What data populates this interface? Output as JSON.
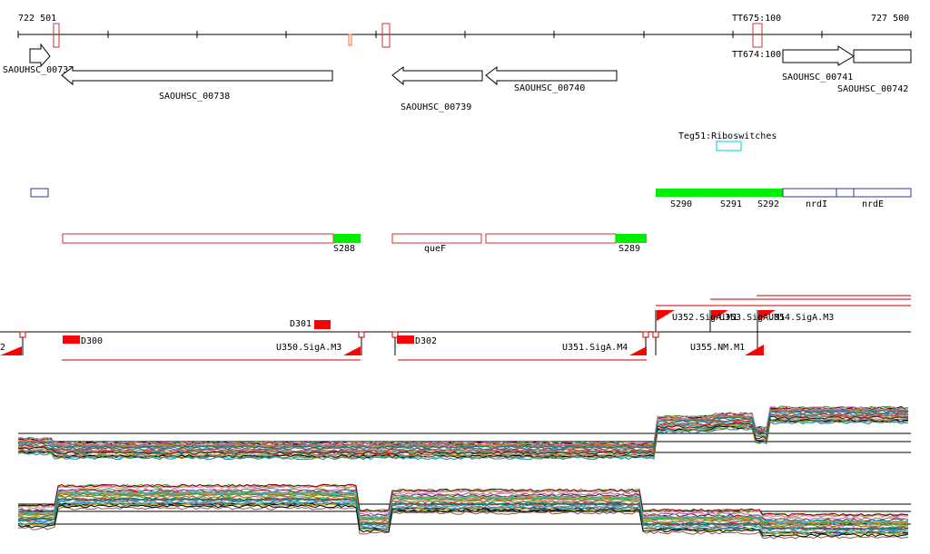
{
  "ruler": {
    "start": "722 501",
    "end": "727 500",
    "terminators": [
      "TT675:100",
      "TT674:100"
    ]
  },
  "genes": [
    {
      "id": "SAOUHSC_00737",
      "label": "SAOUHSC_00737",
      "strand": "+"
    },
    {
      "id": "SAOUHSC_00738",
      "label": "SAOUHSC_00738",
      "strand": "-"
    },
    {
      "id": "SAOUHSC_00739",
      "label": "SAOUHSC_00739",
      "strand": "-"
    },
    {
      "id": "SAOUHSC_00740",
      "label": "SAOUHSC_00740",
      "strand": "-"
    },
    {
      "id": "SAOUHSC_00741",
      "label": "SAOUHSC_00741",
      "strand": "+"
    },
    {
      "id": "SAOUHSC_00742",
      "label": "SAOUHSC_00742",
      "strand": "+"
    }
  ],
  "riboswitch": {
    "label": "Teg51:Riboswitches",
    "color": "#00cccc"
  },
  "segments_top": [
    "S290",
    "S291",
    "S292",
    "nrdI",
    "nrdE"
  ],
  "segments_bottom": [
    "S288",
    "queF",
    "S289"
  ],
  "promoters": [
    "D301",
    "D300",
    "D302",
    "U350.SigA.M3",
    "U351.SigA.M4",
    "U352.SigA.M1",
    "U353.SigA.M1",
    "U354.SigA.M3",
    "U355.NM.M1",
    "2"
  ],
  "colors": {
    "gene_outline": "#000000",
    "feature_red": "#ff0000",
    "outline_red": "#cc3333",
    "segment_green": "#00ee00",
    "outline_blue": "#333399",
    "riboswitch": "#00cccc"
  },
  "expression_palette": [
    "#d62728",
    "#ff7f0e",
    "#2ca02c",
    "#1f77b4",
    "#9467bd",
    "#8c564b",
    "#e377c2",
    "#7f7f7f",
    "#bcbd22",
    "#17becf",
    "#000000",
    "#800000",
    "#808000",
    "#008080",
    "#ff9999",
    "#66aa66"
  ]
}
